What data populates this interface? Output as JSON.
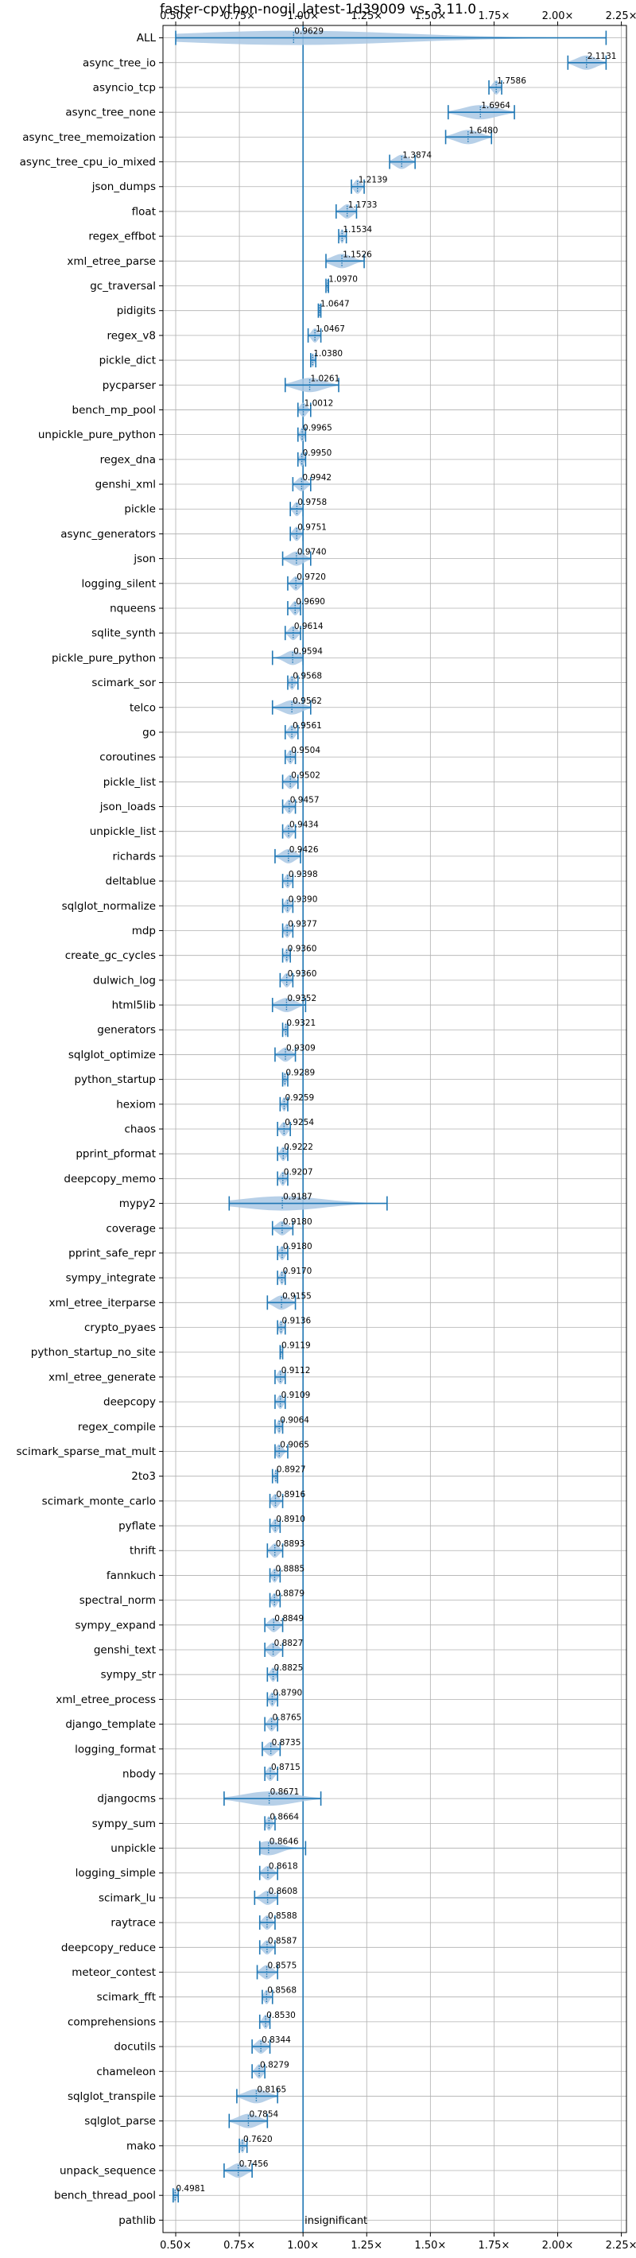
{
  "chart_data": {
    "type": "violin",
    "title": "faster-cpython-nogil_latest-1d39009 vs. 3.11.0",
    "xlabel": "",
    "ylabel": "",
    "xlim": [
      0.45,
      2.27
    ],
    "xticks": [
      0.5,
      0.75,
      1.0,
      1.25,
      1.5,
      1.75,
      2.0,
      2.25
    ],
    "xtick_labels": [
      "0.50×",
      "0.75×",
      "1.00×",
      "1.25×",
      "1.50×",
      "1.75×",
      "2.00×",
      "2.25×"
    ],
    "tick_positions": [
      "top",
      "bottom"
    ],
    "grid": true,
    "reference_line": 1.0,
    "colors": {
      "violin": "#aac8e4",
      "marker": "#1f77b4",
      "grid": "#b0b0b0"
    },
    "benchmarks": [
      {
        "name": "ALL",
        "median": 0.9629,
        "min": 0.5,
        "max": 2.19,
        "label": "0.9629"
      },
      {
        "name": "async_tree_io",
        "median": 2.1131,
        "min": 2.04,
        "max": 2.19,
        "label": "2.1131"
      },
      {
        "name": "asyncio_tcp",
        "median": 1.7586,
        "min": 1.73,
        "max": 1.78,
        "label": "1.7586"
      },
      {
        "name": "async_tree_none",
        "median": 1.6964,
        "min": 1.57,
        "max": 1.83,
        "label": "1.6964"
      },
      {
        "name": "async_tree_memoization",
        "median": 1.648,
        "min": 1.56,
        "max": 1.74,
        "label": "1.6480"
      },
      {
        "name": "async_tree_cpu_io_mixed",
        "median": 1.3874,
        "min": 1.34,
        "max": 1.44,
        "label": "1.3874"
      },
      {
        "name": "json_dumps",
        "median": 1.2139,
        "min": 1.19,
        "max": 1.24,
        "label": "1.2139"
      },
      {
        "name": "float",
        "median": 1.1733,
        "min": 1.13,
        "max": 1.21,
        "label": "1.1733"
      },
      {
        "name": "regex_effbot",
        "median": 1.1534,
        "min": 1.14,
        "max": 1.17,
        "label": "1.1534"
      },
      {
        "name": "xml_etree_parse",
        "median": 1.1526,
        "min": 1.09,
        "max": 1.24,
        "label": "1.1526"
      },
      {
        "name": "gc_traversal",
        "median": 1.097,
        "min": 1.09,
        "max": 1.1,
        "label": "1.0970"
      },
      {
        "name": "pidigits",
        "median": 1.0647,
        "min": 1.06,
        "max": 1.07,
        "label": "1.0647"
      },
      {
        "name": "regex_v8",
        "median": 1.0467,
        "min": 1.02,
        "max": 1.07,
        "label": "1.0467"
      },
      {
        "name": "pickle_dict",
        "median": 1.038,
        "min": 1.03,
        "max": 1.05,
        "label": "1.0380"
      },
      {
        "name": "pycparser",
        "median": 1.0261,
        "min": 0.93,
        "max": 1.14,
        "label": "1.0261"
      },
      {
        "name": "bench_mp_pool",
        "median": 1.0012,
        "min": 0.98,
        "max": 1.03,
        "label": "1.0012"
      },
      {
        "name": "unpickle_pure_python",
        "median": 0.9965,
        "min": 0.98,
        "max": 1.01,
        "label": "0.9965"
      },
      {
        "name": "regex_dna",
        "median": 0.995,
        "min": 0.98,
        "max": 1.01,
        "label": "0.9950"
      },
      {
        "name": "genshi_xml",
        "median": 0.9942,
        "min": 0.96,
        "max": 1.03,
        "label": "0.9942"
      },
      {
        "name": "pickle",
        "median": 0.9758,
        "min": 0.95,
        "max": 1.0,
        "label": "0.9758"
      },
      {
        "name": "async_generators",
        "median": 0.9751,
        "min": 0.95,
        "max": 1.0,
        "label": "0.9751"
      },
      {
        "name": "json",
        "median": 0.974,
        "min": 0.92,
        "max": 1.03,
        "label": "0.9740"
      },
      {
        "name": "logging_silent",
        "median": 0.972,
        "min": 0.94,
        "max": 1.0,
        "label": "0.9720"
      },
      {
        "name": "nqueens",
        "median": 0.969,
        "min": 0.94,
        "max": 0.99,
        "label": "0.9690"
      },
      {
        "name": "sqlite_synth",
        "median": 0.9614,
        "min": 0.93,
        "max": 0.99,
        "label": "0.9614"
      },
      {
        "name": "pickle_pure_python",
        "median": 0.9594,
        "min": 0.88,
        "max": 1.0,
        "label": "0.9594"
      },
      {
        "name": "scimark_sor",
        "median": 0.9568,
        "min": 0.94,
        "max": 0.98,
        "label": "0.9568"
      },
      {
        "name": "telco",
        "median": 0.9562,
        "min": 0.88,
        "max": 1.03,
        "label": "0.9562"
      },
      {
        "name": "go",
        "median": 0.9561,
        "min": 0.93,
        "max": 0.98,
        "label": "0.9561"
      },
      {
        "name": "coroutines",
        "median": 0.9504,
        "min": 0.93,
        "max": 0.97,
        "label": "0.9504"
      },
      {
        "name": "pickle_list",
        "median": 0.9502,
        "min": 0.92,
        "max": 0.98,
        "label": "0.9502"
      },
      {
        "name": "json_loads",
        "median": 0.9457,
        "min": 0.92,
        "max": 0.97,
        "label": "0.9457"
      },
      {
        "name": "unpickle_list",
        "median": 0.9434,
        "min": 0.92,
        "max": 0.97,
        "label": "0.9434"
      },
      {
        "name": "richards",
        "median": 0.9426,
        "min": 0.89,
        "max": 0.99,
        "label": "0.9426"
      },
      {
        "name": "deltablue",
        "median": 0.9398,
        "min": 0.92,
        "max": 0.96,
        "label": "0.9398"
      },
      {
        "name": "sqlglot_normalize",
        "median": 0.939,
        "min": 0.92,
        "max": 0.96,
        "label": "0.9390"
      },
      {
        "name": "mdp",
        "median": 0.9377,
        "min": 0.92,
        "max": 0.96,
        "label": "0.9377"
      },
      {
        "name": "create_gc_cycles",
        "median": 0.936,
        "min": 0.92,
        "max": 0.95,
        "label": "0.9360"
      },
      {
        "name": "dulwich_log",
        "median": 0.936,
        "min": 0.91,
        "max": 0.96,
        "label": "0.9360"
      },
      {
        "name": "html5lib",
        "median": 0.9352,
        "min": 0.88,
        "max": 1.01,
        "label": "0.9352"
      },
      {
        "name": "generators",
        "median": 0.9321,
        "min": 0.92,
        "max": 0.94,
        "label": "0.9321"
      },
      {
        "name": "sqlglot_optimize",
        "median": 0.9309,
        "min": 0.89,
        "max": 0.97,
        "label": "0.9309"
      },
      {
        "name": "python_startup",
        "median": 0.9289,
        "min": 0.92,
        "max": 0.94,
        "label": "0.9289"
      },
      {
        "name": "hexiom",
        "median": 0.9259,
        "min": 0.91,
        "max": 0.94,
        "label": "0.9259"
      },
      {
        "name": "chaos",
        "median": 0.9254,
        "min": 0.9,
        "max": 0.95,
        "label": "0.9254"
      },
      {
        "name": "pprint_pformat",
        "median": 0.9222,
        "min": 0.9,
        "max": 0.94,
        "label": "0.9222"
      },
      {
        "name": "deepcopy_memo",
        "median": 0.9207,
        "min": 0.9,
        "max": 0.94,
        "label": "0.9207"
      },
      {
        "name": "mypy2",
        "median": 0.9187,
        "min": 0.71,
        "max": 1.33,
        "label": "0.9187"
      },
      {
        "name": "coverage",
        "median": 0.918,
        "min": 0.88,
        "max": 0.96,
        "label": "0.9180"
      },
      {
        "name": "pprint_safe_repr",
        "median": 0.918,
        "min": 0.9,
        "max": 0.94,
        "label": "0.9180"
      },
      {
        "name": "sympy_integrate",
        "median": 0.917,
        "min": 0.9,
        "max": 0.93,
        "label": "0.9170"
      },
      {
        "name": "xml_etree_iterparse",
        "median": 0.9155,
        "min": 0.86,
        "max": 0.97,
        "label": "0.9155"
      },
      {
        "name": "crypto_pyaes",
        "median": 0.9136,
        "min": 0.9,
        "max": 0.93,
        "label": "0.9136"
      },
      {
        "name": "python_startup_no_site",
        "median": 0.9119,
        "min": 0.91,
        "max": 0.92,
        "label": "0.9119"
      },
      {
        "name": "xml_etree_generate",
        "median": 0.9112,
        "min": 0.89,
        "max": 0.93,
        "label": "0.9112"
      },
      {
        "name": "deepcopy",
        "median": 0.9109,
        "min": 0.89,
        "max": 0.93,
        "label": "0.9109"
      },
      {
        "name": "regex_compile",
        "median": 0.9064,
        "min": 0.89,
        "max": 0.92,
        "label": "0.9064"
      },
      {
        "name": "scimark_sparse_mat_mult",
        "median": 0.9065,
        "min": 0.89,
        "max": 0.94,
        "label": "0.9065"
      },
      {
        "name": "2to3",
        "median": 0.8927,
        "min": 0.88,
        "max": 0.9,
        "label": "0.8927"
      },
      {
        "name": "scimark_monte_carlo",
        "median": 0.8916,
        "min": 0.87,
        "max": 0.92,
        "label": "0.8916"
      },
      {
        "name": "pyflate",
        "median": 0.891,
        "min": 0.87,
        "max": 0.91,
        "label": "0.8910"
      },
      {
        "name": "thrift",
        "median": 0.8893,
        "min": 0.86,
        "max": 0.92,
        "label": "0.8893"
      },
      {
        "name": "fannkuch",
        "median": 0.8885,
        "min": 0.87,
        "max": 0.91,
        "label": "0.8885"
      },
      {
        "name": "spectral_norm",
        "median": 0.8879,
        "min": 0.87,
        "max": 0.91,
        "label": "0.8879"
      },
      {
        "name": "sympy_expand",
        "median": 0.8849,
        "min": 0.85,
        "max": 0.92,
        "label": "0.8849"
      },
      {
        "name": "genshi_text",
        "median": 0.8827,
        "min": 0.85,
        "max": 0.92,
        "label": "0.8827"
      },
      {
        "name": "sympy_str",
        "median": 0.8825,
        "min": 0.86,
        "max": 0.9,
        "label": "0.8825"
      },
      {
        "name": "xml_etree_process",
        "median": 0.879,
        "min": 0.86,
        "max": 0.9,
        "label": "0.8790"
      },
      {
        "name": "django_template",
        "median": 0.8765,
        "min": 0.85,
        "max": 0.9,
        "label": "0.8765"
      },
      {
        "name": "logging_format",
        "median": 0.8735,
        "min": 0.84,
        "max": 0.91,
        "label": "0.8735"
      },
      {
        "name": "nbody",
        "median": 0.8715,
        "min": 0.85,
        "max": 0.9,
        "label": "0.8715"
      },
      {
        "name": "djangocms",
        "median": 0.8671,
        "min": 0.69,
        "max": 1.07,
        "label": "0.8671"
      },
      {
        "name": "sympy_sum",
        "median": 0.8664,
        "min": 0.85,
        "max": 0.89,
        "label": "0.8664"
      },
      {
        "name": "unpickle",
        "median": 0.8646,
        "min": 0.83,
        "max": 1.01,
        "label": "0.8646"
      },
      {
        "name": "logging_simple",
        "median": 0.8618,
        "min": 0.83,
        "max": 0.9,
        "label": "0.8618"
      },
      {
        "name": "scimark_lu",
        "median": 0.8608,
        "min": 0.81,
        "max": 0.9,
        "label": "0.8608"
      },
      {
        "name": "raytrace",
        "median": 0.8588,
        "min": 0.83,
        "max": 0.89,
        "label": "0.8588"
      },
      {
        "name": "deepcopy_reduce",
        "median": 0.8587,
        "min": 0.83,
        "max": 0.89,
        "label": "0.8587"
      },
      {
        "name": "meteor_contest",
        "median": 0.8575,
        "min": 0.82,
        "max": 0.9,
        "label": "0.8575"
      },
      {
        "name": "scimark_fft",
        "median": 0.8568,
        "min": 0.84,
        "max": 0.88,
        "label": "0.8568"
      },
      {
        "name": "comprehensions",
        "median": 0.853,
        "min": 0.83,
        "max": 0.87,
        "label": "0.8530"
      },
      {
        "name": "docutils",
        "median": 0.8344,
        "min": 0.8,
        "max": 0.87,
        "label": "0.8344"
      },
      {
        "name": "chameleon",
        "median": 0.8279,
        "min": 0.8,
        "max": 0.85,
        "label": "0.8279"
      },
      {
        "name": "sqlglot_transpile",
        "median": 0.8165,
        "min": 0.74,
        "max": 0.9,
        "label": "0.8165"
      },
      {
        "name": "sqlglot_parse",
        "median": 0.7854,
        "min": 0.71,
        "max": 0.86,
        "label": "0.7854"
      },
      {
        "name": "mako",
        "median": 0.762,
        "min": 0.75,
        "max": 0.78,
        "label": "0.7620"
      },
      {
        "name": "unpack_sequence",
        "median": 0.7456,
        "min": 0.69,
        "max": 0.8,
        "label": "0.7456"
      },
      {
        "name": "bench_thread_pool",
        "median": 0.4981,
        "min": 0.49,
        "max": 0.51,
        "label": "0.4981"
      },
      {
        "name": "pathlib",
        "median": null,
        "min": null,
        "max": null,
        "label": "insignificant"
      }
    ]
  }
}
